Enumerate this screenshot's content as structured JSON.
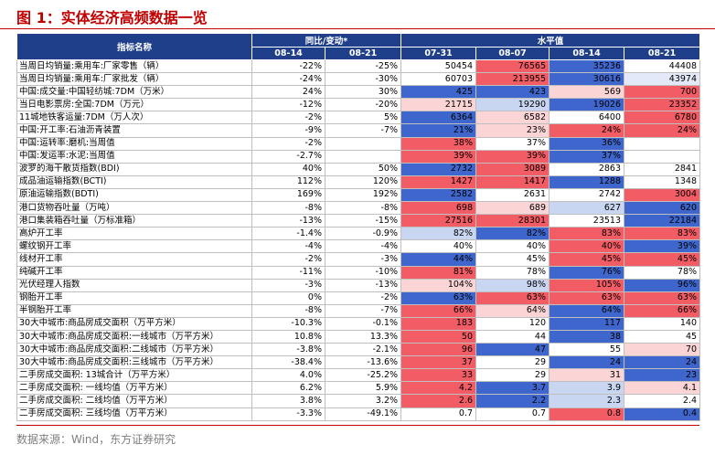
{
  "title": "图 1：实体经济高频数据一览",
  "table": {
    "header": {
      "name": "指标名称",
      "groups": [
        "同比/变动*",
        "水平值"
      ],
      "dates": [
        "08-14",
        "08-21",
        "07-31",
        "08-07",
        "08-14",
        "08-21"
      ]
    },
    "rows": [
      {
        "cells": [
          "当周日均销量:乘用车:厂家零售（辆）",
          "-22%",
          "-25%",
          "50454",
          "76565",
          "35236",
          "44408"
        ],
        "colors": [
          "#ffffff",
          "#f25c64",
          "#3f66cc",
          "#ffffff"
        ]
      },
      {
        "cells": [
          "当周日均销量:乘用车:厂家批发（辆）",
          "-24%",
          "-30%",
          "60703",
          "213955",
          "30616",
          "43974"
        ],
        "colors": [
          "#ffffff",
          "#f25c64",
          "#3f66cc",
          "#e3e9f8"
        ]
      },
      {
        "cells": [
          "中国:成交量:中国轻纺城:7DM（万米）",
          "24%",
          "30%",
          "425",
          "423",
          "569",
          "700"
        ],
        "colors": [
          "#3f66cc",
          "#3f66cc",
          "#fbd4d6",
          "#f25c64"
        ]
      },
      {
        "cells": [
          "当日电影票房:全国:7DM（万元）",
          "-12%",
          "-20%",
          "21715",
          "19290",
          "19026",
          "23352"
        ],
        "colors": [
          "#fbd4d6",
          "#c9d6f2",
          "#3f66cc",
          "#f25c64"
        ]
      },
      {
        "cells": [
          "11城地铁客运量:7DM（万人次）",
          "-2%",
          "5%",
          "6364",
          "6582",
          "6400",
          "6780"
        ],
        "colors": [
          "#3f66cc",
          "#fbd4d6",
          "#ffffff",
          "#f25c64"
        ]
      },
      {
        "cells": [
          "中国:开工率:石油沥青装置",
          "-9%",
          "-7%",
          "21%",
          "23%",
          "24%",
          "24%"
        ],
        "colors": [
          "#3f66cc",
          "#fbd4d6",
          "#f25c64",
          "#f25c64"
        ]
      },
      {
        "cells": [
          "中国:运转率:磨机:当周值",
          "-2%",
          null,
          "38%",
          "37%",
          "36%",
          null
        ],
        "colors": [
          "#f25c64",
          "#ffffff",
          "#3f66cc",
          "#ffffff"
        ]
      },
      {
        "cells": [
          "中国:发运率:水泥:当周值",
          "-2.7%",
          null,
          "39%",
          "39%",
          "37%",
          null
        ],
        "colors": [
          "#f25c64",
          "#f25c64",
          "#3f66cc",
          "#ffffff"
        ]
      },
      {
        "cells": [
          "波罗的海干散货指数(BDI)",
          "40%",
          "50%",
          "2732",
          "3089",
          "2863",
          "2841"
        ],
        "colors": [
          "#3f66cc",
          "#f25c64",
          "#ffffff",
          "#ffffff"
        ]
      },
      {
        "cells": [
          "成品油运输指数(BCTI)",
          "112%",
          "120%",
          "1427",
          "1417",
          "1288",
          "1348"
        ],
        "colors": [
          "#f25c64",
          "#f25c64",
          "#3f66cc",
          "#ffffff"
        ]
      },
      {
        "cells": [
          "原油运输指数(BDTI)",
          "169%",
          "192%",
          "2582",
          "2631",
          "2742",
          "3004"
        ],
        "colors": [
          "#3f66cc",
          "#ffffff",
          "#ffffff",
          "#f25c64"
        ]
      },
      {
        "cells": [
          "港口货物吞吐量（万吨）",
          "-8%",
          "-8%",
          "698",
          "689",
          "627",
          "620"
        ],
        "colors": [
          "#f25c64",
          "#fbd4d6",
          "#c9d6f2",
          "#3f66cc"
        ]
      },
      {
        "cells": [
          "港口集装箱吞吐量（万标准箱）",
          "-13%",
          "-15%",
          "27516",
          "28301",
          "23513",
          "22184"
        ],
        "colors": [
          "#f25c64",
          "#f25c64",
          "#ffffff",
          "#3f66cc"
        ]
      },
      {
        "cells": [
          "高炉开工率",
          "-1.4%",
          "-0.9%",
          "82%",
          "82%",
          "83%",
          "83%"
        ],
        "colors": [
          "#c9d6f2",
          "#3f66cc",
          "#f25c64",
          "#f25c64"
        ]
      },
      {
        "cells": [
          "螺纹钢开工率",
          "-4%",
          "-4%",
          "40%",
          "40%",
          "40%",
          "39%"
        ],
        "colors": [
          "#ffffff",
          "#ffffff",
          "#f25c64",
          "#3f66cc"
        ]
      },
      {
        "cells": [
          "线材开工率",
          "-2%",
          "-3%",
          "44%",
          "45%",
          "45%",
          "45%"
        ],
        "colors": [
          "#3f66cc",
          "#ffffff",
          "#f25c64",
          "#f25c64"
        ]
      },
      {
        "cells": [
          "纯碱开工率",
          "-11%",
          "-10%",
          "81%",
          "78%",
          "76%",
          "78%"
        ],
        "colors": [
          "#f25c64",
          "#ffffff",
          "#3f66cc",
          "#ffffff"
        ]
      },
      {
        "cells": [
          "光伏经理人指数",
          "-3%",
          "-13%",
          "104%",
          "98%",
          "105%",
          "96%"
        ],
        "colors": [
          "#fbd4d6",
          "#c9d6f2",
          "#f25c64",
          "#3f66cc"
        ]
      },
      {
        "cells": [
          "钢胎开工率",
          "0%",
          "-2%",
          "63%",
          "63%",
          "63%",
          "63%"
        ],
        "colors": [
          "#3f66cc",
          "#f25c64",
          "#f25c64",
          "#f25c64"
        ]
      },
      {
        "cells": [
          "半钢胎开工率",
          "-8%",
          "-7%",
          "66%",
          "64%",
          "64%",
          "66%"
        ],
        "colors": [
          "#f25c64",
          "#fbd4d6",
          "#3f66cc",
          "#f25c64"
        ]
      },
      {
        "cells": [
          "30大中城市:商品房成交面积（万平方米）",
          "-10.3%",
          "-0.1%",
          "183",
          "120",
          "117",
          "140"
        ],
        "colors": [
          "#f25c64",
          "#ffffff",
          "#3f66cc",
          "#ffffff"
        ]
      },
      {
        "cells": [
          "30大中城市:商品房成交面积:一线城市（万平方米）",
          "10.8%",
          "13.3%",
          "50",
          "44",
          "38",
          "45"
        ],
        "colors": [
          "#f25c64",
          "#ffffff",
          "#3f66cc",
          "#ffffff"
        ]
      },
      {
        "cells": [
          "30大中城市:商品房成交面积:二线城市（万平方米）",
          "-3.8%",
          "-2.1%",
          "96",
          "47",
          "55",
          "70"
        ],
        "colors": [
          "#f25c64",
          "#3f66cc",
          "#ffffff",
          "#fbd4d6"
        ]
      },
      {
        "cells": [
          "30大中城市:商品房成交面积:三线城市（万平方米）",
          "-38.4%",
          "-13.6%",
          "37",
          "29",
          "24",
          "24"
        ],
        "colors": [
          "#f25c64",
          "#ffffff",
          "#3f66cc",
          "#3f66cc"
        ]
      },
      {
        "cells": [
          "二手房成交面积: 13城合计（万平方米）",
          "4.0%",
          "-25.2%",
          "33",
          "29",
          "31",
          "23"
        ],
        "colors": [
          "#f25c64",
          "#ffffff",
          "#fbd4d6",
          "#3f66cc"
        ]
      },
      {
        "cells": [
          "二手房成交面积: 一线均值（万平方米）",
          "6.2%",
          "5.9%",
          "4.2",
          "3.7",
          "3.9",
          "4.1"
        ],
        "colors": [
          "#f25c64",
          "#3f66cc",
          "#c9d6f2",
          "#fbd4d6"
        ]
      },
      {
        "cells": [
          "二手房成交面积: 二线均值（万平方米）",
          "3.8%",
          "3.2%",
          "2.6",
          "2.2",
          "2.3",
          "2.4"
        ],
        "colors": [
          "#f25c64",
          "#3f66cc",
          "#c9d6f2",
          "#ffffff"
        ]
      },
      {
        "cells": [
          "二手房成交面积: 三线均值（万平方米）",
          "-3.3%",
          "-49.1%",
          "0.7",
          "0.7",
          "0.8",
          "0.4"
        ],
        "colors": [
          "#ffffff",
          "#ffffff",
          "#f25c64",
          "#3f66cc"
        ]
      }
    ]
  },
  "source": "数据来源：Wind，东方证券研究"
}
